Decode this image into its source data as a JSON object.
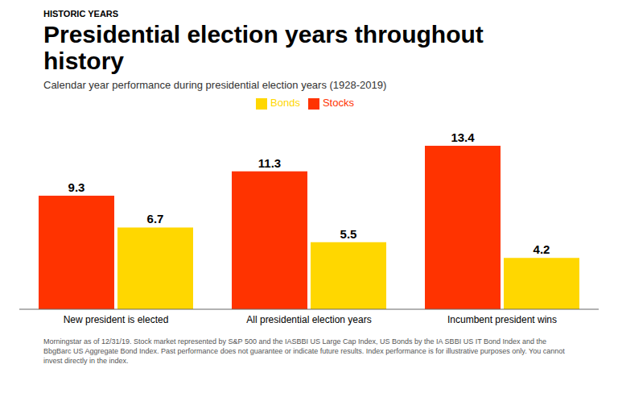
{
  "chart_data": {
    "type": "bar",
    "supertitle": "HISTORIC YEARS",
    "title": "Presidential election years throughout\nhistory",
    "subtitle": "Calendar year performance during presidential election years (1928-2019)",
    "footnote": "Morningstar as of 12/31/19. Stock market represented by S&P 500 and the IASBBI US Large Cap Index, US Bonds by the IA SBBI US IT Bond Index and the BbgBarc US Aggregate Bond Index. Past performance does not guarantee or indicate future results. Index performance is for illustrative purposes only. You cannot invest directly in the index.",
    "categories": [
      "New president is elected",
      "All presidential election years",
      "Incumbent president wins"
    ],
    "series": [
      {
        "name": "Stocks",
        "color": "#FF3300",
        "values": [
          9.3,
          11.3,
          13.4
        ]
      },
      {
        "name": "Bonds",
        "color": "#FFD700",
        "values": [
          6.7,
          5.5,
          4.2
        ]
      }
    ],
    "ylim": [
      0,
      16
    ],
    "grid": false,
    "legend": "top",
    "data_labels": true,
    "tick_labels": "x"
  }
}
